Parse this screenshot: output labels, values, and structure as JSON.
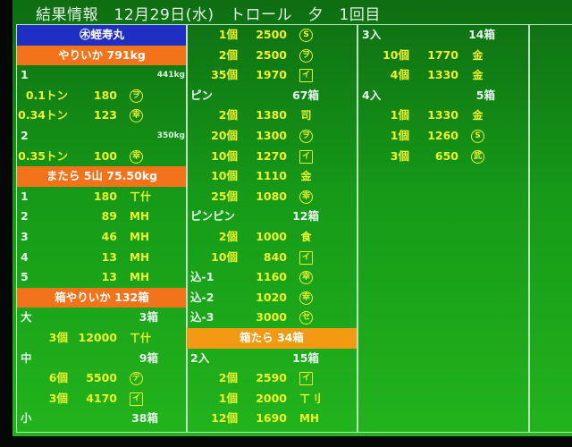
{
  "title": "結果情報　12月29日(水)　トロール　夕　1回目",
  "colors": {
    "background": "#169a18",
    "text_value": "#eef22a",
    "banner_blue": "#1f2fc4",
    "banner_orange": "#f3731a",
    "banner_amber": "#f39a12"
  },
  "columns": [
    {
      "rows": [
        {
          "type": "banner",
          "style": "blue",
          "text": "㊍蛭寿丸"
        },
        {
          "type": "banner",
          "style": "orange",
          "text": "やりいか 791kg"
        },
        {
          "type": "group",
          "label": "1",
          "kg": "441kg"
        },
        {
          "type": "item",
          "qty": "0.1トン",
          "price": "180",
          "mark": {
            "ch": "ヲ",
            "shape": "circle"
          }
        },
        {
          "type": "item",
          "qty": "0.34トン",
          "price": "123",
          "mark": {
            "ch": "幸",
            "shape": "circle"
          }
        },
        {
          "type": "group",
          "label": "2",
          "kg": "350kg"
        },
        {
          "type": "item",
          "qty": "0.35トン",
          "price": "100",
          "mark": {
            "ch": "幸",
            "shape": "circle"
          }
        },
        {
          "type": "banner",
          "style": "orange",
          "text": "またら 5山 75.50kg"
        },
        {
          "type": "item",
          "label": "1",
          "price": "180",
          "mark": {
            "ch": "ㄒ什",
            "shape": "plain"
          }
        },
        {
          "type": "item",
          "label": "2",
          "price": "89",
          "mark": {
            "ch": "MH",
            "shape": "plain"
          }
        },
        {
          "type": "item",
          "label": "3",
          "price": "46",
          "mark": {
            "ch": "MH",
            "shape": "plain"
          }
        },
        {
          "type": "item",
          "label": "4",
          "price": "13",
          "mark": {
            "ch": "MH",
            "shape": "plain"
          }
        },
        {
          "type": "item",
          "label": "5",
          "price": "13",
          "mark": {
            "ch": "MH",
            "shape": "plain"
          }
        },
        {
          "type": "banner",
          "style": "orange",
          "text": "箱やりいか 132箱"
        },
        {
          "type": "group",
          "label": "大",
          "count": "3箱"
        },
        {
          "type": "item",
          "qty": "3個",
          "price": "12000",
          "mark": {
            "ch": "ㄒ什",
            "shape": "plain"
          }
        },
        {
          "type": "group",
          "label": "中",
          "count": "9箱"
        },
        {
          "type": "item",
          "qty": "6個",
          "price": "5500",
          "mark": {
            "ch": "テ",
            "shape": "circle"
          }
        },
        {
          "type": "item",
          "qty": "3個",
          "price": "4170",
          "mark": {
            "ch": "イ",
            "shape": "square"
          }
        },
        {
          "type": "group",
          "label": "小",
          "count": "38箱"
        }
      ]
    },
    {
      "rows": [
        {
          "type": "item",
          "qty": "1個",
          "price": "2500",
          "mark": {
            "ch": "S",
            "shape": "circle"
          }
        },
        {
          "type": "item",
          "qty": "2個",
          "price": "2500",
          "mark": {
            "ch": "ヲ",
            "shape": "circle"
          }
        },
        {
          "type": "item",
          "qty": "35個",
          "price": "1970",
          "mark": {
            "ch": "イ",
            "shape": "square"
          }
        },
        {
          "type": "group",
          "label": "ピン",
          "count": "67箱"
        },
        {
          "type": "item",
          "qty": "2個",
          "price": "1380",
          "mark": {
            "ch": "司",
            "shape": "plain"
          }
        },
        {
          "type": "item",
          "qty": "20個",
          "price": "1300",
          "mark": {
            "ch": "ヲ",
            "shape": "circle"
          }
        },
        {
          "type": "item",
          "qty": "10個",
          "price": "1270",
          "mark": {
            "ch": "イ",
            "shape": "square"
          }
        },
        {
          "type": "item",
          "qty": "10個",
          "price": "1110",
          "mark": {
            "ch": "金",
            "shape": "plain"
          }
        },
        {
          "type": "item",
          "qty": "25個",
          "price": "1080",
          "mark": {
            "ch": "幸",
            "shape": "circle"
          }
        },
        {
          "type": "group",
          "label": "ピンピン",
          "count": "12箱"
        },
        {
          "type": "item",
          "qty": "2個",
          "price": "1000",
          "mark": {
            "ch": "食",
            "shape": "plain"
          }
        },
        {
          "type": "item",
          "qty": "10個",
          "price": "840",
          "mark": {
            "ch": "イ",
            "shape": "square"
          }
        },
        {
          "type": "item",
          "label": "込-1",
          "price": "1160",
          "mark": {
            "ch": "幸",
            "shape": "circle"
          }
        },
        {
          "type": "item",
          "label": "込-2",
          "price": "1020",
          "mark": {
            "ch": "幸",
            "shape": "circle"
          }
        },
        {
          "type": "item",
          "label": "込-3",
          "price": "3000",
          "mark": {
            "ch": "セ",
            "shape": "circle"
          }
        },
        {
          "type": "banner",
          "style": "amber",
          "text": "箱たら 34箱"
        },
        {
          "type": "group",
          "label": "2入",
          "count": "15箱"
        },
        {
          "type": "item",
          "qty": "2個",
          "price": "2590",
          "mark": {
            "ch": "イ",
            "shape": "square"
          }
        },
        {
          "type": "item",
          "qty": "1個",
          "price": "2000",
          "mark": {
            "ch": "ㄒ刂",
            "shape": "plain"
          }
        },
        {
          "type": "item",
          "qty": "12個",
          "price": "1690",
          "mark": {
            "ch": "MH",
            "shape": "plain"
          }
        }
      ]
    },
    {
      "rows": [
        {
          "type": "group",
          "label": "3入",
          "count": "14箱"
        },
        {
          "type": "item",
          "qty": "10個",
          "price": "1770",
          "mark": {
            "ch": "金",
            "shape": "plain"
          }
        },
        {
          "type": "item",
          "qty": "4個",
          "price": "1330",
          "mark": {
            "ch": "金",
            "shape": "plain"
          }
        },
        {
          "type": "group",
          "label": "4入",
          "count": "5箱"
        },
        {
          "type": "item",
          "qty": "1個",
          "price": "1330",
          "mark": {
            "ch": "金",
            "shape": "plain"
          }
        },
        {
          "type": "item",
          "qty": "1個",
          "price": "1260",
          "mark": {
            "ch": "S",
            "shape": "circle"
          }
        },
        {
          "type": "item",
          "qty": "3個",
          "price": "650",
          "mark": {
            "ch": "武",
            "shape": "circle"
          }
        }
      ]
    },
    {
      "rows": []
    }
  ]
}
